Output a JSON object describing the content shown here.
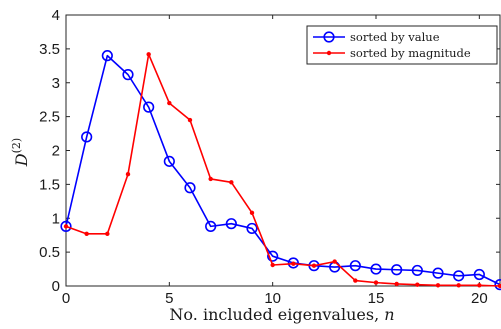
{
  "chart_data": {
    "type": "line",
    "title": "",
    "xlabel": "No. included eigenvalues, n",
    "ylabel": "D(2)",
    "xlim": [
      0,
      21
    ],
    "ylim": [
      0,
      4
    ],
    "xticks": [
      0,
      5,
      10,
      15,
      20
    ],
    "yticks": [
      0,
      0.5,
      1,
      1.5,
      2,
      2.5,
      3,
      3.5,
      4
    ],
    "xtick_labels": [
      "0",
      "5",
      "10",
      "15",
      "20"
    ],
    "ytick_labels": [
      "0",
      "0.5",
      "1",
      "1.5",
      "2",
      "2.5",
      "3",
      "3.5",
      "4"
    ],
    "grid": false,
    "legend_position": "top-right",
    "x": [
      0,
      1,
      2,
      3,
      4,
      5,
      6,
      7,
      8,
      9,
      10,
      11,
      12,
      13,
      14,
      15,
      16,
      17,
      18,
      19,
      20,
      21
    ],
    "series": [
      {
        "name": "sorted by value",
        "color": "#0000ff",
        "marker": "circle",
        "values": [
          0.88,
          2.2,
          3.4,
          3.12,
          2.64,
          1.84,
          1.45,
          0.88,
          0.92,
          0.85,
          0.44,
          0.34,
          0.3,
          0.28,
          0.3,
          0.25,
          0.24,
          0.23,
          0.19,
          0.15,
          0.17,
          0.02
        ]
      },
      {
        "name": "sorted by magnitude",
        "color": "#ff0000",
        "marker": "dot",
        "values": [
          0.88,
          0.77,
          0.77,
          1.65,
          3.42,
          2.7,
          2.45,
          1.58,
          1.53,
          1.08,
          0.31,
          0.33,
          0.3,
          0.36,
          0.08,
          0.05,
          0.03,
          0.02,
          0.01,
          0.01,
          0.01,
          0.0
        ]
      }
    ]
  }
}
